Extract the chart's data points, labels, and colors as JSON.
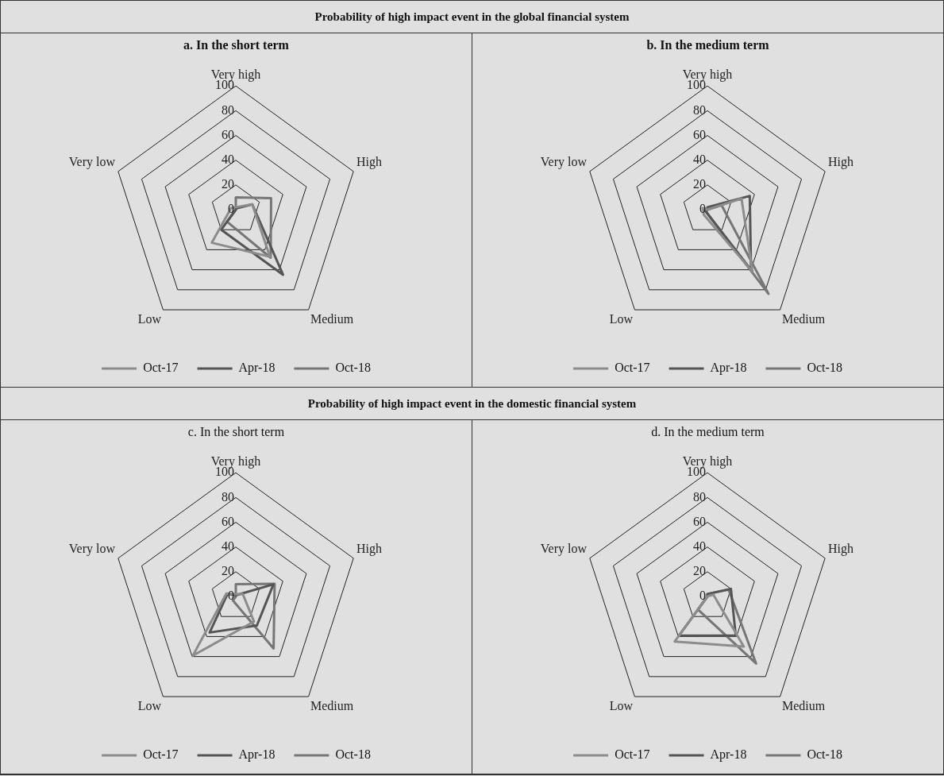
{
  "chart_data": [
    {
      "type": "radar",
      "title": "a. In the short term",
      "annotations": [
        "Probability of high impact event in the global financial system"
      ],
      "categories": [
        "Very high",
        "High",
        "Medium",
        "Low",
        "Very low"
      ],
      "ylim": [
        0,
        100
      ],
      "yticks": [
        0,
        20,
        40,
        60,
        80,
        100
      ],
      "grid": true,
      "legend": "bottom",
      "marker": "none",
      "line_style": "solid",
      "series": [
        {
          "name": "Oct-17",
          "color": "#8c8c8c",
          "values": [
            2,
            14,
            47,
            33,
            4
          ]
        },
        {
          "name": "Apr-18",
          "color": "#555555",
          "values": [
            1,
            14,
            65,
            20,
            0
          ]
        },
        {
          "name": "Oct-18",
          "color": "#767676",
          "values": [
            10,
            30,
            48,
            12,
            0
          ]
        }
      ]
    },
    {
      "type": "radar",
      "title": "b. In the medium term",
      "categories": [
        "Very high",
        "High",
        "Medium",
        "Low",
        "Very low"
      ],
      "ylim": [
        0,
        100
      ],
      "yticks": [
        0,
        20,
        40,
        60,
        80,
        100
      ],
      "grid": true,
      "legend": "bottom",
      "marker": "none",
      "line_style": "solid",
      "series": [
        {
          "name": "Oct-17",
          "color": "#8c8c8c",
          "values": [
            0,
            29,
            62,
            5,
            4
          ]
        },
        {
          "name": "Apr-18",
          "color": "#555555",
          "values": [
            2,
            36,
            60,
            2,
            0
          ]
        },
        {
          "name": "Oct-18",
          "color": "#767676",
          "values": [
            0,
            12,
            84,
            2,
            2
          ]
        }
      ]
    },
    {
      "type": "radar",
      "title": "c.  In the short term",
      "annotations": [
        "Probability of high impact event in the domestic financial system"
      ],
      "categories": [
        "Very high",
        "High",
        "Medium",
        "Low",
        "Very low"
      ],
      "ylim": [
        0,
        100
      ],
      "yticks": [
        0,
        20,
        40,
        60,
        80,
        100
      ],
      "grid": true,
      "legend": "bottom",
      "marker": "none",
      "line_style": "solid",
      "series": [
        {
          "name": "Oct-17",
          "color": "#8c8c8c",
          "values": [
            2,
            6,
            25,
            59,
            8
          ]
        },
        {
          "name": "Apr-18",
          "color": "#555555",
          "values": [
            1,
            32,
            29,
            36,
            7
          ]
        },
        {
          "name": "Oct-18",
          "color": "#767676",
          "values": [
            10,
            33,
            52,
            4,
            0
          ]
        }
      ]
    },
    {
      "type": "radar",
      "title": "d.  In the medium term",
      "categories": [
        "Very high",
        "High",
        "Medium",
        "Low",
        "Very low"
      ],
      "ylim": [
        0,
        100
      ],
      "yticks": [
        0,
        20,
        40,
        60,
        80,
        100
      ],
      "grid": true,
      "legend": "bottom",
      "marker": "none",
      "line_style": "solid",
      "series": [
        {
          "name": "Oct-17",
          "color": "#8c8c8c",
          "values": [
            0,
            5,
            50,
            45,
            0
          ]
        },
        {
          "name": "Apr-18",
          "color": "#555555",
          "values": [
            2,
            20,
            39,
            39,
            0
          ]
        },
        {
          "name": "Oct-18",
          "color": "#767676",
          "values": [
            2,
            18,
            67,
            13,
            0
          ]
        }
      ]
    }
  ]
}
